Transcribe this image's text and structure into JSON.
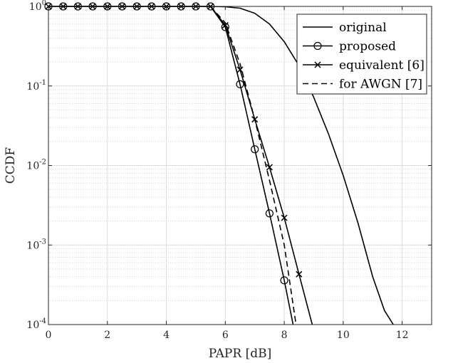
{
  "chart_data": {
    "type": "line",
    "title": "",
    "xlabel": "PAPR [dB]",
    "ylabel": "CCDF",
    "xlim": [
      0,
      13
    ],
    "ylim": [
      0.0001,
      1
    ],
    "yscale": "log",
    "grid": true,
    "minor_grid": true,
    "legend_position": "top-right",
    "x_ticks": [
      0,
      2,
      4,
      6,
      8,
      10,
      12
    ],
    "x_tick_labels": [
      "0",
      "2",
      "4",
      "6",
      "8",
      "10",
      "12"
    ],
    "y_ticks": [
      1,
      0.1,
      0.01,
      0.001,
      0.0001
    ],
    "y_tick_labels": [
      {
        "base": "10",
        "exp": "0"
      },
      {
        "base": "10",
        "exp": "-1"
      },
      {
        "base": "10",
        "exp": "-2"
      },
      {
        "base": "10",
        "exp": "-3"
      },
      {
        "base": "10",
        "exp": "-4"
      }
    ],
    "series": [
      {
        "name": "original",
        "line_style": "solid",
        "marker": "none",
        "x": [
          0,
          5.5,
          6.0,
          6.5,
          7.0,
          7.5,
          8.0,
          8.5,
          9.0,
          9.5,
          10.0,
          10.5,
          11.0,
          11.4,
          11.7
        ],
        "y": [
          1,
          1,
          0.99,
          0.95,
          0.82,
          0.6,
          0.36,
          0.18,
          0.072,
          0.025,
          0.0075,
          0.0019,
          0.0004,
          0.00015,
          0.0001
        ]
      },
      {
        "name": "proposed",
        "line_style": "solid",
        "marker": "circle",
        "x": [
          0,
          0.5,
          1,
          1.5,
          2,
          2.5,
          3,
          3.5,
          4,
          4.5,
          5,
          5.5,
          6,
          6.5,
          7,
          7.5,
          8,
          8.3
        ],
        "y": [
          1,
          1,
          1,
          1,
          1,
          1,
          1,
          1,
          1,
          1,
          1,
          1,
          0.55,
          0.105,
          0.016,
          0.0025,
          0.00036,
          0.0001
        ]
      },
      {
        "name": "equivalent [6]",
        "line_style": "solid",
        "marker": "x",
        "x": [
          0,
          0.5,
          1,
          1.5,
          2,
          2.5,
          3,
          3.5,
          4,
          4.5,
          5,
          5.5,
          6,
          6.5,
          7,
          7.5,
          8,
          8.5,
          8.95
        ],
        "y": [
          1,
          1,
          1,
          1,
          1,
          1,
          1,
          1,
          1,
          1,
          1,
          1,
          0.58,
          0.16,
          0.038,
          0.0095,
          0.0022,
          0.00043,
          0.0001
        ]
      },
      {
        "name": "for AWGN [7]",
        "line_style": "dashed",
        "marker": "none",
        "x": [
          5.5,
          6.0,
          6.5,
          7.0,
          7.5,
          8.0,
          8.4
        ],
        "y": [
          1,
          0.62,
          0.19,
          0.038,
          0.0065,
          0.001,
          0.0001
        ]
      }
    ]
  }
}
